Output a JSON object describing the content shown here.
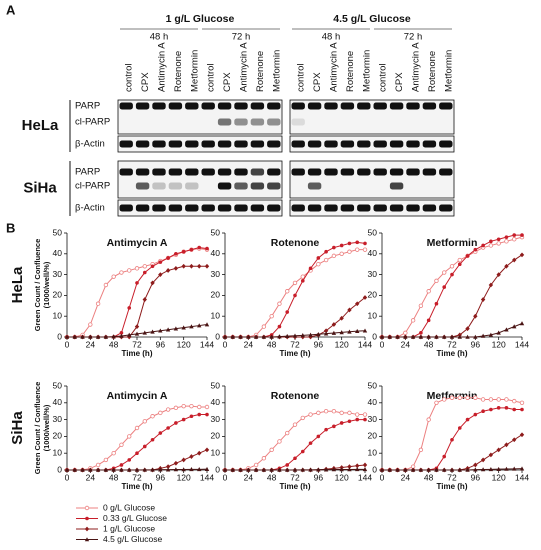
{
  "panel_a": {
    "label": "A",
    "conditions": [
      {
        "title": "1 g/L Glucose",
        "times": [
          "48 h",
          "72 h"
        ]
      },
      {
        "title": "4.5 g/L Glucose",
        "times": [
          "48 h",
          "72 h"
        ]
      }
    ],
    "lanes": [
      "control",
      "CPX",
      "Antimycin A",
      "Rotenone",
      "Metformin"
    ],
    "cell_lines": [
      {
        "name": "HeLa",
        "bands": [
          "PARP",
          "cl-PARP",
          "β-Actin"
        ]
      },
      {
        "name": "SiHa",
        "bands": [
          "PARP",
          "cl-PARP",
          "β-Actin"
        ]
      }
    ]
  },
  "panel_b": {
    "label": "B",
    "rows": [
      "HeLa",
      "SiHa"
    ]
  },
  "legend": [
    "0 g/L Glucose",
    "0.33 g/L Glucose",
    "1 g/L Glucose",
    "4.5 g/L Glucose"
  ],
  "chart_data": [
    {
      "type": "line",
      "title": "Antimycin A",
      "ylabel": [
        "Green Count / Confluence",
        "(1000/well/%)"
      ],
      "xlabel": "Time (h)",
      "x": [
        0,
        8,
        16,
        24,
        32,
        40,
        48,
        56,
        64,
        72,
        80,
        88,
        96,
        104,
        112,
        120,
        128,
        136,
        144
      ],
      "xlim": [
        0,
        144
      ],
      "xticks": [
        0,
        24,
        48,
        72,
        96,
        120,
        144
      ],
      "ylim": [
        0,
        50
      ],
      "yticks": [
        0,
        10,
        20,
        30,
        40,
        50
      ],
      "series": [
        {
          "color": "#ec8080",
          "values": [
            0,
            0,
            1,
            6,
            16,
            25,
            29,
            31,
            32,
            33,
            34,
            35,
            36.5,
            38,
            39.5,
            41,
            42,
            42.5,
            42
          ]
        },
        {
          "color": "#c81e2a",
          "values": [
            0,
            0,
            0,
            0,
            0,
            0,
            0,
            2,
            14,
            26,
            31,
            34,
            36,
            38,
            40,
            41,
            42,
            43,
            42.5
          ]
        },
        {
          "color": "#8e1c1c",
          "values": [
            0,
            0,
            0,
            0,
            0,
            0,
            0,
            0,
            0,
            5,
            18,
            26,
            30,
            32,
            33,
            34,
            34,
            34,
            34
          ]
        },
        {
          "color": "#4a1414",
          "values": [
            0,
            0,
            0,
            0,
            0,
            0,
            0.2,
            0.5,
            1,
            1.5,
            2,
            2.5,
            3,
            3.5,
            4,
            4.5,
            5,
            5.5,
            6
          ]
        }
      ]
    },
    {
      "type": "line",
      "title": "Rotenone",
      "xlabel": "Time (h)",
      "x": [
        0,
        8,
        16,
        24,
        32,
        40,
        48,
        56,
        64,
        72,
        80,
        88,
        96,
        104,
        112,
        120,
        128,
        136,
        144
      ],
      "xlim": [
        0,
        144
      ],
      "xticks": [
        0,
        24,
        48,
        72,
        96,
        120,
        144
      ],
      "ylim": [
        0,
        50
      ],
      "yticks": [
        0,
        10,
        20,
        30,
        40,
        50
      ],
      "series": [
        {
          "color": "#ec8080",
          "values": [
            0,
            0,
            0,
            0,
            1,
            5,
            10,
            16,
            22,
            26,
            29,
            32,
            35,
            37,
            39,
            40,
            41,
            42,
            42
          ]
        },
        {
          "color": "#c81e2a",
          "values": [
            0,
            0,
            0,
            0,
            0,
            0,
            1,
            5,
            12,
            20,
            27,
            33,
            38,
            41,
            43,
            44,
            45,
            45.5,
            45
          ]
        },
        {
          "color": "#8e1c1c",
          "values": [
            0,
            0,
            0,
            0,
            0,
            0,
            0,
            0,
            0,
            0,
            0,
            0,
            1,
            3,
            6,
            9,
            13,
            16,
            19
          ]
        },
        {
          "color": "#4a1414",
          "values": [
            0,
            0,
            0,
            0,
            0,
            0,
            0,
            0.2,
            0.4,
            0.6,
            0.8,
            1,
            1.3,
            1.6,
            1.9,
            2.2,
            2.5,
            2.8,
            3
          ]
        }
      ]
    },
    {
      "type": "line",
      "title": "Metformin",
      "xlabel": "Time (h)",
      "x": [
        0,
        8,
        16,
        24,
        32,
        40,
        48,
        56,
        64,
        72,
        80,
        88,
        96,
        104,
        112,
        120,
        128,
        136,
        144
      ],
      "xlim": [
        0,
        144
      ],
      "xticks": [
        0,
        24,
        48,
        72,
        96,
        120,
        144
      ],
      "ylim": [
        0,
        50
      ],
      "yticks": [
        0,
        10,
        20,
        30,
        40,
        50
      ],
      "series": [
        {
          "color": "#ec8080",
          "values": [
            0,
            0,
            0,
            2,
            8,
            15,
            22,
            27,
            31,
            34,
            37,
            39,
            41,
            43,
            44,
            45,
            46,
            47,
            48
          ]
        },
        {
          "color": "#c81e2a",
          "values": [
            0,
            0,
            0,
            0,
            0,
            2,
            8,
            16,
            24,
            30,
            35,
            39,
            42,
            44,
            46,
            47,
            48,
            49,
            49
          ]
        },
        {
          "color": "#8e1c1c",
          "values": [
            0,
            0,
            0,
            0,
            0,
            0,
            0,
            0,
            0,
            0,
            1,
            4,
            10,
            18,
            25,
            30,
            34,
            37,
            39.5
          ]
        },
        {
          "color": "#4a1414",
          "values": [
            0,
            0,
            0,
            0,
            0,
            0,
            0,
            0,
            0,
            0,
            0,
            0,
            0,
            0.5,
            1,
            2,
            3.5,
            5,
            6.5
          ]
        }
      ]
    },
    {
      "type": "line",
      "title": "Antimycin A",
      "ylabel": [
        "Green Count / Confluence",
        "(1000/well/%)"
      ],
      "xlabel": "Time (h)",
      "x": [
        0,
        8,
        16,
        24,
        32,
        40,
        48,
        56,
        64,
        72,
        80,
        88,
        96,
        104,
        112,
        120,
        128,
        136,
        144
      ],
      "xlim": [
        0,
        144
      ],
      "xticks": [
        0,
        24,
        48,
        72,
        96,
        120,
        144
      ],
      "ylim": [
        0,
        50
      ],
      "yticks": [
        0,
        10,
        20,
        30,
        40,
        50
      ],
      "series": [
        {
          "color": "#ec8080",
          "values": [
            0,
            0,
            0,
            1,
            3,
            6,
            10,
            15,
            20,
            25,
            29,
            32,
            34,
            36,
            37,
            38,
            38,
            37.5,
            37.5
          ]
        },
        {
          "color": "#c81e2a",
          "values": [
            0,
            0,
            0,
            0,
            0,
            0,
            1,
            3,
            6,
            10,
            14,
            18,
            22,
            25,
            28,
            30,
            32,
            33,
            33
          ]
        },
        {
          "color": "#8e1c1c",
          "values": [
            0,
            0,
            0,
            0,
            0,
            0,
            0,
            0,
            0,
            0,
            0,
            0,
            1,
            2,
            4,
            6,
            8,
            10,
            12
          ]
        },
        {
          "color": "#4a1414",
          "values": [
            0,
            0,
            0,
            0,
            0,
            0,
            0,
            0,
            0,
            0,
            0.1,
            0.1,
            0.2,
            0.2,
            0.3,
            0.3,
            0.4,
            0.4,
            0.5
          ]
        }
      ]
    },
    {
      "type": "line",
      "title": "Rotenone",
      "xlabel": "Time (h)",
      "x": [
        0,
        8,
        16,
        24,
        32,
        40,
        48,
        56,
        64,
        72,
        80,
        88,
        96,
        104,
        112,
        120,
        128,
        136,
        144
      ],
      "xlim": [
        0,
        144
      ],
      "xticks": [
        0,
        24,
        48,
        72,
        96,
        120,
        144
      ],
      "ylim": [
        0,
        50
      ],
      "yticks": [
        0,
        10,
        20,
        30,
        40,
        50
      ],
      "series": [
        {
          "color": "#ec8080",
          "values": [
            0,
            0,
            0,
            1,
            3,
            7,
            12,
            17,
            22,
            27,
            31,
            33,
            34,
            35,
            35,
            34,
            34,
            33,
            33
          ]
        },
        {
          "color": "#c81e2a",
          "values": [
            0,
            0,
            0,
            0,
            0,
            0,
            0,
            1,
            3,
            7,
            11,
            16,
            20,
            24,
            26,
            28,
            29,
            30,
            30
          ]
        },
        {
          "color": "#8e1c1c",
          "values": [
            0,
            0,
            0,
            0,
            0,
            0,
            0,
            0,
            0,
            0,
            0,
            0,
            0,
            0.5,
            1,
            1.5,
            2,
            2.5,
            3
          ]
        },
        {
          "color": "#4a1414",
          "values": [
            0,
            0,
            0,
            0,
            0,
            0,
            0,
            0,
            0,
            0,
            0.1,
            0.1,
            0.2,
            0.2,
            0.3,
            0.3,
            0.3,
            0.4,
            0.4
          ]
        }
      ]
    },
    {
      "type": "line",
      "title": "Metformin",
      "xlabel": "Time (h)",
      "x": [
        0,
        8,
        16,
        24,
        32,
        40,
        48,
        56,
        64,
        72,
        80,
        88,
        96,
        104,
        112,
        120,
        128,
        136,
        144
      ],
      "xlim": [
        0,
        144
      ],
      "xticks": [
        0,
        24,
        48,
        72,
        96,
        120,
        144
      ],
      "ylim": [
        0,
        50
      ],
      "yticks": [
        0,
        10,
        20,
        30,
        40,
        50
      ],
      "series": [
        {
          "color": "#ec8080",
          "values": [
            0,
            0,
            0,
            0,
            2,
            12,
            30,
            40,
            42,
            43,
            43,
            43,
            43,
            42,
            42,
            42,
            42,
            41,
            40
          ]
        },
        {
          "color": "#c81e2a",
          "values": [
            0,
            0,
            0,
            0,
            0,
            0,
            0,
            1,
            8,
            18,
            25,
            30,
            33,
            35,
            36,
            37,
            37,
            36,
            36
          ]
        },
        {
          "color": "#8e1c1c",
          "values": [
            0,
            0,
            0,
            0,
            0,
            0,
            0,
            0,
            0,
            0,
            0,
            1,
            3,
            6,
            9,
            12,
            15,
            18,
            21
          ]
        },
        {
          "color": "#4a1414",
          "values": [
            0,
            0,
            0,
            0,
            0,
            0,
            0,
            0,
            0,
            0,
            0,
            0,
            0.2,
            0.3,
            0.4,
            0.5,
            0.6,
            0.7,
            0.8
          ]
        }
      ]
    }
  ]
}
